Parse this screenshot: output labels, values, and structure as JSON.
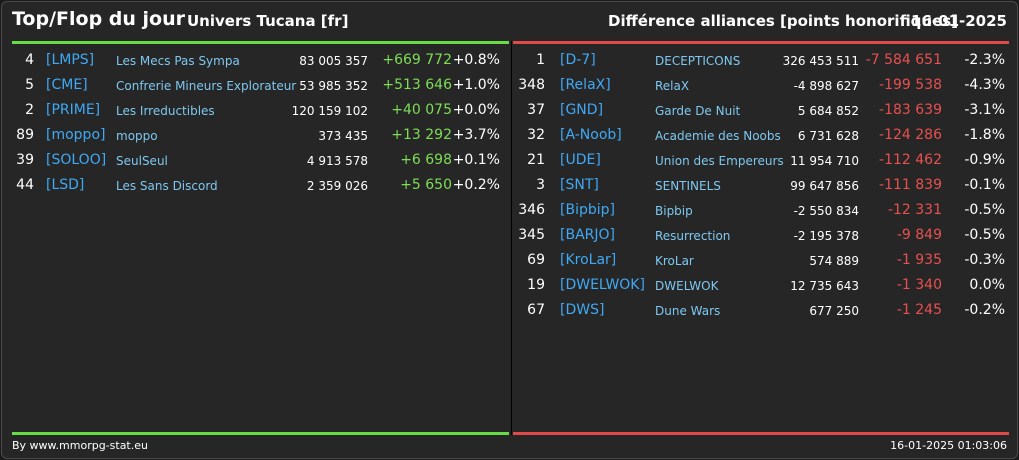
{
  "header": {
    "title": "Top/Flop du jour",
    "server": "Univers Tucana [fr]",
    "subtitle": "Différence alliances [points honorifiques]",
    "date": "16-01-2025"
  },
  "colors": {
    "positive": "#7ddd55",
    "negative": "#e8504f",
    "tag": "#3fa9f5",
    "top_line": "#66dd44",
    "flop_line": "#e04a4a"
  },
  "top": [
    {
      "rank": "4",
      "tag": "[LMPS]",
      "name": "Les Mecs Pas Sympa",
      "points": "83 005 357",
      "diff": "+669 772",
      "pct": "+0.8%"
    },
    {
      "rank": "5",
      "tag": "[CME]",
      "name": "Confrerie Mineurs Explorateur",
      "points": "53 985 352",
      "diff": "+513 646",
      "pct": "+1.0%"
    },
    {
      "rank": "2",
      "tag": "[PRIME]",
      "name": "Les Irreductibles",
      "points": "120 159 102",
      "diff": "+40 075",
      "pct": "+0.0%"
    },
    {
      "rank": "89",
      "tag": "[moppo]",
      "name": "moppo",
      "points": "373 435",
      "diff": "+13 292",
      "pct": "+3.7%"
    },
    {
      "rank": "39",
      "tag": "[SOLOO]",
      "name": "SeulSeul",
      "points": "4 913 578",
      "diff": "+6 698",
      "pct": "+0.1%"
    },
    {
      "rank": "44",
      "tag": "[LSD]",
      "name": "Les Sans Discord",
      "points": "2 359 026",
      "diff": "+5 650",
      "pct": "+0.2%"
    }
  ],
  "flop": [
    {
      "rank": "1",
      "tag": "[D-7]",
      "name": "DECEPTICONS",
      "points": "326 453 511",
      "diff": "-7 584 651",
      "pct": "-2.3%"
    },
    {
      "rank": "348",
      "tag": "[RelaX]",
      "name": "RelaX",
      "points": "-4 898 627",
      "diff": "-199 538",
      "pct": "-4.3%"
    },
    {
      "rank": "37",
      "tag": "[GND]",
      "name": "Garde De Nuit",
      "points": "5 684 852",
      "diff": "-183 639",
      "pct": "-3.1%"
    },
    {
      "rank": "32",
      "tag": "[A-Noob]",
      "name": "Academie des Noobs",
      "points": "6 731 628",
      "diff": "-124 286",
      "pct": "-1.8%"
    },
    {
      "rank": "21",
      "tag": "[UDE]",
      "name": "Union des Empereurs",
      "points": "11 954 710",
      "diff": "-112 462",
      "pct": "-0.9%"
    },
    {
      "rank": "3",
      "tag": "[SNT]",
      "name": "SENTINELS",
      "points": "99 647 856",
      "diff": "-111 839",
      "pct": "-0.1%"
    },
    {
      "rank": "346",
      "tag": "[Bipbip]",
      "name": "Bipbip",
      "points": "-2 550 834",
      "diff": "-12 331",
      "pct": "-0.5%"
    },
    {
      "rank": "345",
      "tag": "[BARJO]",
      "name": "Resurrection",
      "points": "-2 195 378",
      "diff": "-9 849",
      "pct": "-0.5%"
    },
    {
      "rank": "69",
      "tag": "[KroLar]",
      "name": "KroLar",
      "points": "574 889",
      "diff": "-1 935",
      "pct": "-0.3%"
    },
    {
      "rank": "19",
      "tag": "[DWELWOK]",
      "name": "DWELWOK",
      "points": "12 735 643",
      "diff": "-1 340",
      "pct": "0.0%"
    },
    {
      "rank": "67",
      "tag": "[DWS]",
      "name": "Dune Wars",
      "points": "677 250",
      "diff": "-1 245",
      "pct": "-0.2%"
    }
  ],
  "footer": {
    "credit": "By www.mmorpg-stat.eu",
    "timestamp": "16-01-2025 01:03:06"
  }
}
